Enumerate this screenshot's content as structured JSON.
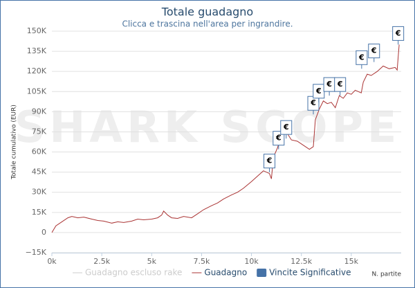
{
  "chart_data": {
    "type": "line",
    "title": "Totale guadagno",
    "subtitle": "Clicca e trascina nell'area per ingrandire.",
    "watermark": "SHARK SCOPE",
    "y_label": "Totale cumulativo (EUR)",
    "x_label": "N. partite",
    "flag_label": "€",
    "xlim": [
      0,
      17500
    ],
    "ylim": [
      -15000,
      150000
    ],
    "xticks": [
      {
        "value": 0,
        "label": "0k"
      },
      {
        "value": 2500,
        "label": "2.5k"
      },
      {
        "value": 5000,
        "label": "5k"
      },
      {
        "value": 7500,
        "label": "7.5k"
      },
      {
        "value": 10000,
        "label": "10k"
      },
      {
        "value": 12500,
        "label": "12.5k"
      },
      {
        "value": 15000,
        "label": "15k"
      }
    ],
    "yticks": [
      {
        "value": -15000,
        "label": "−15K"
      },
      {
        "value": 0,
        "label": "0"
      },
      {
        "value": 15000,
        "label": "15K"
      },
      {
        "value": 30000,
        "label": "30K"
      },
      {
        "value": 45000,
        "label": "45K"
      },
      {
        "value": 60000,
        "label": "60K"
      },
      {
        "value": 75000,
        "label": "75K"
      },
      {
        "value": 90000,
        "label": "90K"
      },
      {
        "value": 105000,
        "label": "105K"
      },
      {
        "value": 120000,
        "label": "120K"
      },
      {
        "value": 135000,
        "label": "135K"
      },
      {
        "value": 150000,
        "label": "150K"
      }
    ],
    "grid": true,
    "series": [
      {
        "name": "Guadagno escluso rake",
        "color": "#cccccc",
        "visible": false,
        "x": [],
        "values": []
      },
      {
        "name": "Guadagno",
        "color": "#aa3333",
        "visible": true,
        "x": [
          0,
          200,
          500,
          800,
          1000,
          1300,
          1600,
          2000,
          2300,
          2600,
          3000,
          3300,
          3600,
          4000,
          4300,
          4600,
          5000,
          5300,
          5500,
          5600,
          5800,
          6000,
          6300,
          6600,
          7000,
          7300,
          7600,
          8000,
          8300,
          8600,
          9000,
          9300,
          9600,
          10000,
          10300,
          10600,
          10900,
          11000,
          11100,
          11300,
          11500,
          11700,
          12000,
          12300,
          12600,
          12900,
          13100,
          13200,
          13400,
          13600,
          13800,
          14000,
          14200,
          14400,
          14600,
          14800,
          15000,
          15200,
          15500,
          15600,
          15800,
          16000,
          16300,
          16600,
          16900,
          17200,
          17300,
          17400
        ],
        "values": [
          0,
          5000,
          8000,
          11000,
          12000,
          11000,
          11500,
          10000,
          9000,
          8500,
          7000,
          8000,
          7500,
          8500,
          10000,
          9500,
          10000,
          11000,
          13000,
          16000,
          13000,
          11000,
          10500,
          12000,
          11000,
          14000,
          17000,
          20000,
          22000,
          25000,
          28000,
          30000,
          33000,
          38000,
          42000,
          46000,
          44000,
          40000,
          56000,
          63000,
          72000,
          76000,
          69000,
          68000,
          65000,
          62000,
          64000,
          84000,
          92000,
          98000,
          96000,
          97000,
          93000,
          102000,
          100000,
          104000,
          103000,
          106000,
          104000,
          112000,
          118000,
          117000,
          120000,
          124000,
          122000,
          123000,
          121000,
          140000
        ]
      },
      {
        "name": "Vincite Significative",
        "color": "#4572a7",
        "visible": true,
        "marker": "flag",
        "x": [
          10900,
          11360,
          11740,
          13100,
          13370,
          13900,
          14440,
          15520,
          16140,
          17350
        ],
        "values": [
          45000,
          62000,
          70000,
          88000,
          97000,
          102000,
          102000,
          122000,
          127000,
          140000
        ]
      }
    ]
  }
}
